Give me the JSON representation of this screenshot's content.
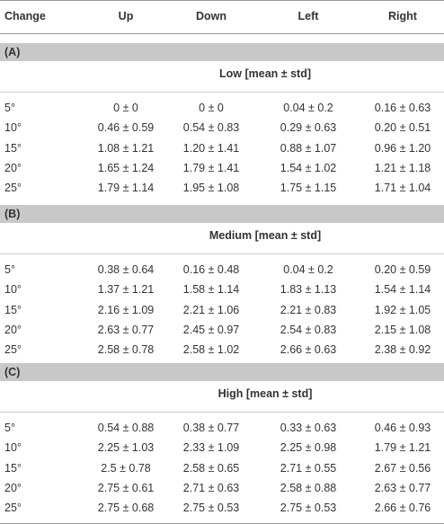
{
  "table": {
    "columns": [
      "Change",
      "Up",
      "Down",
      "Left",
      "Right"
    ],
    "sections": [
      {
        "label": "(A)",
        "title": "Low [mean ± std]",
        "rows": [
          [
            "5°",
            "0 ± 0",
            "0 ± 0",
            "0.04 ± 0.2",
            "0.16 ± 0.63"
          ],
          [
            "10°",
            "0.46 ± 0.59",
            "0.54 ± 0.83",
            "0.29 ± 0.63",
            "0.20 ± 0.51"
          ],
          [
            "15°",
            "1.08 ± 1.21",
            "1.20 ± 1.41",
            "0.88 ± 1.07",
            "0.96 ± 1.20"
          ],
          [
            "20°",
            "1.65 ± 1.24",
            "1.79 ± 1.41",
            "1.54 ± 1.02",
            "1.21 ± 1.18"
          ],
          [
            "25°",
            "1.79 ± 1.14",
            "1.95 ± 1.08",
            "1.75 ± 1.15",
            "1.71 ± 1.04"
          ]
        ]
      },
      {
        "label": "(B)",
        "title": "Medium [mean ± std]",
        "rows": [
          [
            "5°",
            "0.38 ± 0.64",
            "0.16 ± 0.48",
            "0.04 ± 0.2",
            "0.20 ± 0.59"
          ],
          [
            "10°",
            "1.37 ± 1.21",
            "1.58 ± 1.14",
            "1.83 ± 1.13",
            "1.54 ± 1.14"
          ],
          [
            "15°",
            "2.16 ± 1.09",
            "2.21 ± 1.06",
            "2.21 ± 0.83",
            "1.92 ± 1.05"
          ],
          [
            "20°",
            "2.63 ± 0.77",
            "2.45 ± 0.97",
            "2.54 ± 0.83",
            "2.15 ± 1.08"
          ],
          [
            "25°",
            "2.58 ± 0.78",
            "2.58 ± 1.02",
            "2.66 ± 0.63",
            "2.38 ± 0.92"
          ]
        ]
      },
      {
        "label": "(C)",
        "title": "High [mean ± std]",
        "rows": [
          [
            "5°",
            "0.54 ± 0.88",
            "0.38 ± 0.77",
            "0.33 ± 0.63",
            "0.46 ± 0.93"
          ],
          [
            "10°",
            "2.25 ± 1.03",
            "2.33 ± 1.09",
            "2.25 ± 0.98",
            "1.79 ± 1.21"
          ],
          [
            "15°",
            "2.5 ± 0.78",
            "2.58 ± 0.65",
            "2.71 ± 0.55",
            "2.67 ± 0.56"
          ],
          [
            "20°",
            "2.75 ± 0.61",
            "2.71 ± 0.63",
            "2.58 ± 0.88",
            "2.63 ± 0.77"
          ],
          [
            "25°",
            "2.75 ± 0.68",
            "2.75 ± 0.53",
            "2.75 ± 0.53",
            "2.66 ± 0.76"
          ]
        ]
      }
    ]
  }
}
